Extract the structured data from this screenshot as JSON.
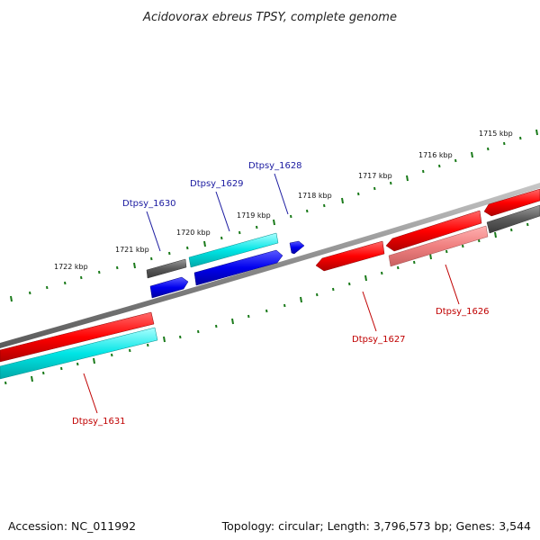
{
  "title": "Acidovorax ebreus TPSY, complete genome",
  "footer": {
    "accession": "Accession: NC_011992",
    "summary": "Topology: circular; Length: 3,796,573 bp; Genes: 3,544"
  },
  "scale_labels": [
    "1722 kbp",
    "1721 kbp",
    "1720 kbp",
    "1719 kbp",
    "1718 kbp",
    "1717 kbp",
    "1716 kbp",
    "1715 kbp"
  ],
  "gene_labels": [
    {
      "text": "Dtpsy_1630",
      "color": "#1a1aa0"
    },
    {
      "text": "Dtpsy_1629",
      "color": "#1a1aa0"
    },
    {
      "text": "Dtpsy_1628",
      "color": "#1a1aa0"
    },
    {
      "text": "Dtpsy_1627",
      "color": "#c00000"
    },
    {
      "text": "Dtpsy_1626",
      "color": "#c00000"
    },
    {
      "text": "Dtpsy_1631",
      "color": "#c00000"
    }
  ],
  "colors": {
    "backbone": "#8a8a8a",
    "tick": "#1a7a1a",
    "cds_red": "#ff0000",
    "cds_cyan": "#00e5e5",
    "cds_blue": "#0000ee",
    "cds_gray": "#5a5a5a",
    "cds_pink": "#f08080"
  }
}
